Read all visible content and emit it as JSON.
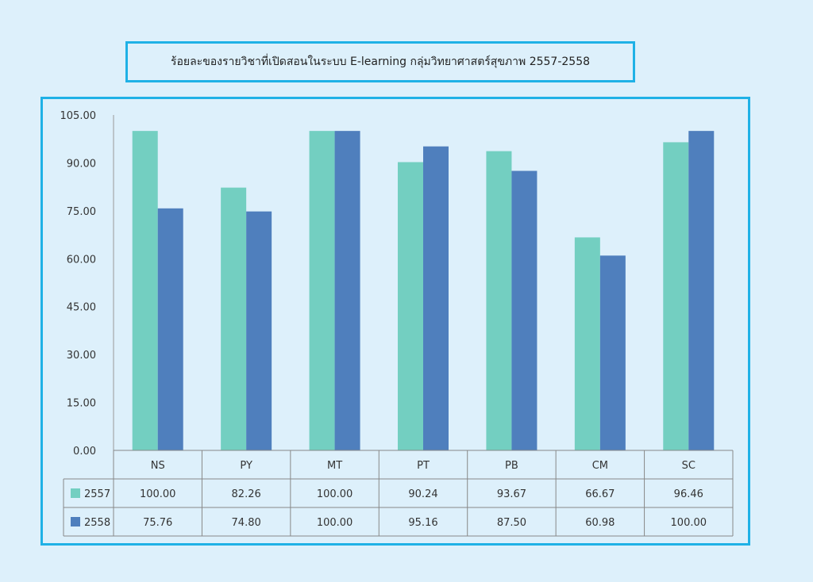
{
  "title": "ร้อยละของรายวิชาที่เปิดสอนในระบบ E-learning   กลุ่มวิทยาศาสตร์สุขภาพ  2557-2558",
  "colors": {
    "background": "#ddf0fb",
    "border": "#1fb1e6",
    "series_2557": "#73cfc1",
    "series_2558": "#4f7fbd"
  },
  "chart_data": {
    "type": "bar",
    "title": "ร้อยละของรายวิชาที่เปิดสอนในระบบ E-learning   กลุ่มวิทยาศาสตร์สุขภาพ  2557-2558",
    "categories": [
      "NS",
      "PY",
      "MT",
      "PT",
      "PB",
      "CM",
      "SC"
    ],
    "series": [
      {
        "name": "2557",
        "color": "#73cfc1",
        "values": [
          100.0,
          82.26,
          100.0,
          90.24,
          93.67,
          66.67,
          96.46
        ]
      },
      {
        "name": "2558",
        "color": "#4f7fbd",
        "values": [
          75.76,
          74.8,
          100.0,
          95.16,
          87.5,
          60.98,
          100.0
        ]
      }
    ],
    "ylim": [
      0,
      105
    ],
    "yticks": [
      "0.00",
      "15.00",
      "30.00",
      "45.00",
      "60.00",
      "75.00",
      "90.00",
      "105.00"
    ],
    "data_table": true,
    "grid": false
  }
}
